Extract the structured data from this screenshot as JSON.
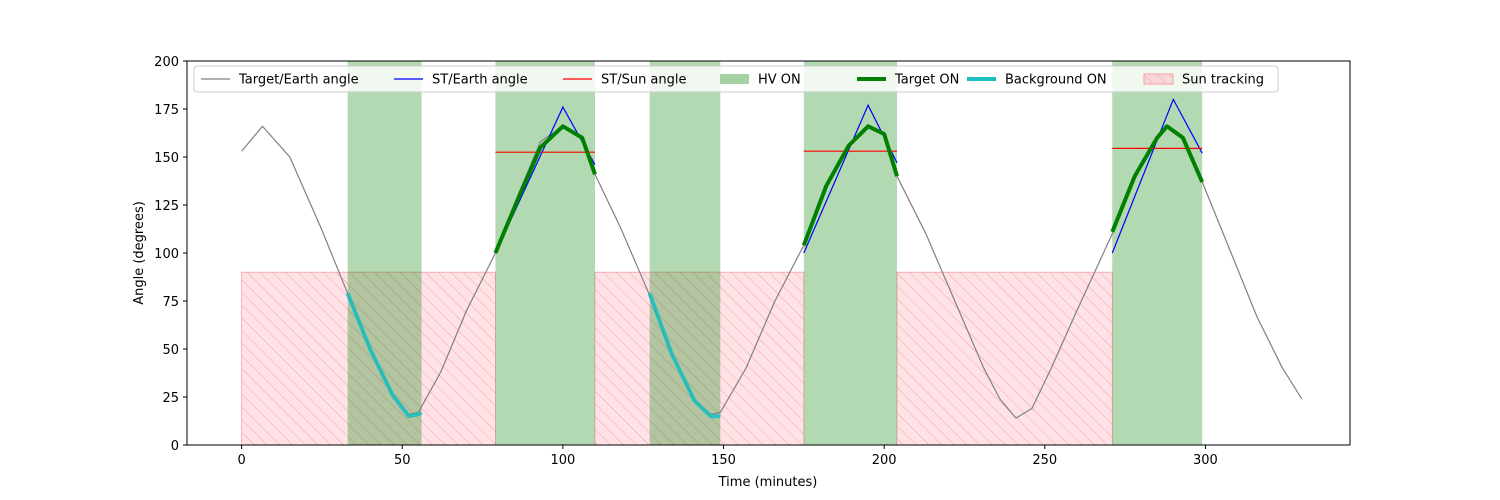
{
  "chart_data": {
    "type": "line",
    "title": "",
    "xlabel": "Time (minutes)",
    "ylabel": "Angle (degrees)",
    "xlim": [
      -17,
      345
    ],
    "ylim": [
      0,
      200
    ],
    "xticks": [
      0,
      50,
      100,
      150,
      200,
      250,
      300
    ],
    "yticks": [
      0,
      25,
      50,
      75,
      100,
      125,
      150,
      175,
      200
    ],
    "grid": false,
    "legend_position": "top",
    "legend": [
      {
        "label": "Target/Earth angle",
        "kind": "line",
        "color": "#808080"
      },
      {
        "label": "ST/Earth angle",
        "kind": "line",
        "color": "#0000ff"
      },
      {
        "label": "ST/Sun angle",
        "kind": "line",
        "color": "#ff0000"
      },
      {
        "label": "HV ON",
        "kind": "patch",
        "color": "#7fbf7f"
      },
      {
        "label": "Target ON",
        "kind": "thickline",
        "color": "#008000"
      },
      {
        "label": "Background ON",
        "kind": "thickline",
        "color": "#17bfbf"
      },
      {
        "label": "Sun tracking",
        "kind": "hatch",
        "color": "#ffb6c1"
      }
    ],
    "target_earth_angle": {
      "x": [
        0,
        6.5,
        15,
        25,
        33,
        40,
        47,
        52,
        55,
        62,
        70,
        79,
        86,
        93,
        100,
        106,
        110,
        118,
        127,
        134,
        141,
        146,
        149,
        157,
        166,
        175,
        182,
        189,
        195,
        200,
        204,
        213,
        222,
        231,
        236,
        241,
        246,
        252,
        260,
        271,
        278,
        285,
        288,
        293,
        299,
        308,
        316,
        324,
        330
      ],
      "y": [
        153,
        166,
        150,
        112,
        79,
        50,
        26,
        16,
        17,
        38,
        70,
        100,
        130,
        158,
        166,
        161,
        141,
        113,
        78,
        47,
        23,
        16,
        17,
        40,
        75,
        104,
        135,
        156,
        166,
        162,
        140,
        110,
        75,
        40,
        24,
        14,
        19,
        40,
        70,
        110,
        140,
        160,
        166,
        160,
        137,
        100,
        67,
        40,
        24
      ]
    },
    "st_earth_angle_segments": [
      {
        "x": [
          79,
          100,
          110
        ],
        "y": [
          100,
          176,
          146
        ]
      },
      {
        "x": [
          175,
          195,
          204
        ],
        "y": [
          100,
          177,
          147
        ]
      },
      {
        "x": [
          271,
          290,
          299
        ],
        "y": [
          100,
          180,
          152
        ]
      }
    ],
    "st_sun_angle_segments": [
      {
        "x": [
          79,
          110
        ],
        "y": [
          152.5,
          152.5
        ]
      },
      {
        "x": [
          175,
          204
        ],
        "y": [
          153,
          153
        ]
      },
      {
        "x": [
          271,
          299
        ],
        "y": [
          154.5,
          154.5
        ]
      }
    ],
    "hv_on_intervals": [
      [
        33,
        56
      ],
      [
        79,
        110
      ],
      [
        127,
        149
      ],
      [
        175,
        204
      ],
      [
        271,
        299
      ]
    ],
    "target_on_segments": [
      {
        "x": [
          79,
          86,
          93,
          100,
          106,
          110
        ],
        "y": [
          100,
          128,
          155,
          166,
          160,
          141
        ]
      },
      {
        "x": [
          175,
          182,
          189,
          195,
          200,
          204
        ],
        "y": [
          104,
          135,
          156,
          166,
          162,
          140
        ]
      },
      {
        "x": [
          271,
          278,
          285,
          288,
          293,
          299
        ],
        "y": [
          111,
          140,
          160,
          166,
          160,
          137
        ]
      }
    ],
    "background_on_segments": [
      {
        "x": [
          33,
          40,
          47,
          52,
          55,
          56
        ],
        "y": [
          79,
          50,
          26,
          15,
          16,
          17
        ]
      },
      {
        "x": [
          127,
          134,
          141,
          146,
          149
        ],
        "y": [
          79,
          47,
          23,
          15,
          15
        ]
      }
    ],
    "sun_tracking_intervals": [
      [
        0,
        79,
        90
      ],
      [
        110,
        175,
        90
      ],
      [
        204,
        271,
        90
      ]
    ]
  }
}
